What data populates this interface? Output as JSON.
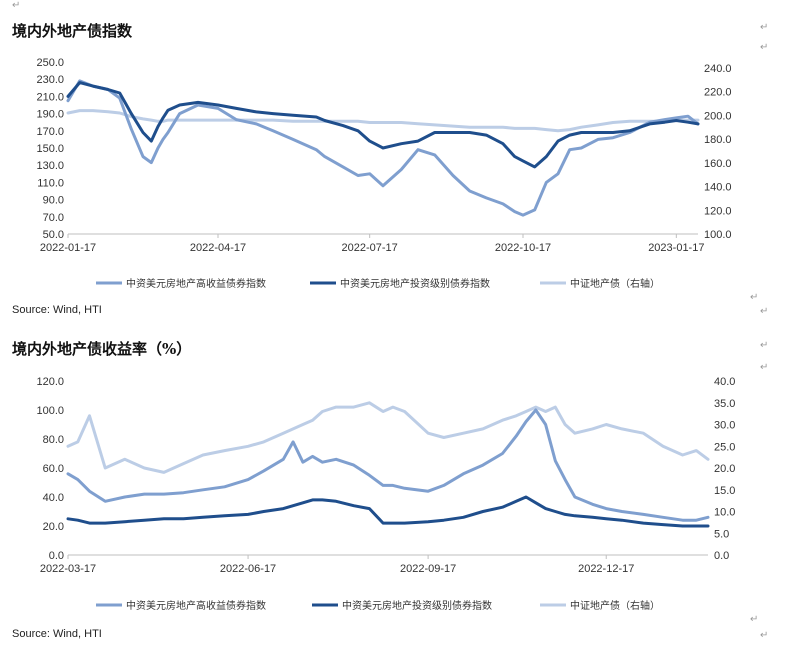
{
  "page": {
    "para_mark": "↵",
    "title1": "境内外地产债指数",
    "title2": "境内外地产债收益率（%）",
    "source1": "Source: Wind, HTI",
    "source2": "Source: Wind, HTI"
  },
  "colors": {
    "high_yield": "#7f9fcf",
    "investment_grade": "#1f4e8c",
    "onshore": "#bccde6"
  },
  "chart_data": [
    {
      "type": "line",
      "title": "境内外地产债指数",
      "x_dates": [
        "2022-01-17",
        "2022-01-24",
        "2022-02-01",
        "2022-02-10",
        "2022-02-17",
        "2022-02-24",
        "2022-03-03",
        "2022-03-08",
        "2022-03-12",
        "2022-03-15",
        "2022-03-18",
        "2022-03-25",
        "2022-04-05",
        "2022-04-17",
        "2022-04-28",
        "2022-05-10",
        "2022-05-20",
        "2022-06-01",
        "2022-06-15",
        "2022-06-20",
        "2022-07-01",
        "2022-07-10",
        "2022-07-17",
        "2022-07-25",
        "2022-08-05",
        "2022-08-15",
        "2022-08-25",
        "2022-09-05",
        "2022-09-15",
        "2022-09-25",
        "2022-10-05",
        "2022-10-12",
        "2022-10-17",
        "2022-10-24",
        "2022-10-31",
        "2022-11-07",
        "2022-11-14",
        "2022-11-21",
        "2022-12-01",
        "2022-12-10",
        "2022-12-20",
        "2023-01-01",
        "2023-01-10",
        "2023-01-17",
        "2023-01-24",
        "2023-01-30"
      ],
      "x_ticks": [
        "2022-01-17",
        "2022-04-17",
        "2022-07-17",
        "2022-10-17",
        "2023-01-17"
      ],
      "yleft_ticks": [
        "50.0",
        "70.0",
        "90.0",
        "110.0",
        "130.0",
        "150.0",
        "170.0",
        "190.0",
        "210.0",
        "230.0",
        "250.0"
      ],
      "yleft_range": [
        50,
        250
      ],
      "yright_ticks": [
        "100.0",
        "120.0",
        "140.0",
        "160.0",
        "180.0",
        "200.0",
        "220.0",
        "240.0"
      ],
      "yright_range": [
        100,
        245
      ],
      "series": [
        {
          "name": "中资美元房地产高收益债券指数",
          "axis": "left",
          "values": [
            205,
            228,
            222,
            218,
            208,
            172,
            140,
            133,
            150,
            160,
            168,
            190,
            200,
            196,
            183,
            178,
            170,
            160,
            148,
            140,
            128,
            118,
            120,
            106,
            125,
            148,
            142,
            118,
            100,
            92,
            85,
            76,
            72,
            78,
            110,
            120,
            148,
            150,
            160,
            162,
            168,
            180,
            183,
            185,
            187,
            178
          ]
        },
        {
          "name": "中资美元房地产投资级别债券指数",
          "axis": "left",
          "values": [
            210,
            226,
            222,
            218,
            214,
            190,
            168,
            158,
            175,
            185,
            194,
            200,
            203,
            200,
            196,
            192,
            190,
            188,
            186,
            182,
            176,
            170,
            158,
            150,
            155,
            158,
            168,
            168,
            168,
            165,
            155,
            140,
            135,
            128,
            140,
            158,
            165,
            168,
            168,
            168,
            170,
            178,
            180,
            182,
            180,
            178
          ]
        },
        {
          "name": "中证地产债（右轴）",
          "axis": "right",
          "values": [
            202,
            204,
            204,
            203,
            202,
            199,
            197,
            196,
            195,
            195,
            196,
            196,
            196,
            196,
            196,
            196,
            196,
            195,
            195,
            195,
            195,
            195,
            194,
            194,
            194,
            193,
            192,
            191,
            190,
            190,
            190,
            189,
            189,
            189,
            188,
            187,
            188,
            190,
            192,
            194,
            195,
            195,
            195,
            196,
            196,
            196
          ]
        }
      ],
      "legend": "bottom"
    },
    {
      "type": "line",
      "title": "境内外地产债收益率（%）",
      "x_dates": [
        "2022-03-17",
        "2022-03-22",
        "2022-03-28",
        "2022-04-05",
        "2022-04-15",
        "2022-04-25",
        "2022-05-05",
        "2022-05-15",
        "2022-05-25",
        "2022-06-05",
        "2022-06-17",
        "2022-06-25",
        "2022-07-05",
        "2022-07-10",
        "2022-07-15",
        "2022-07-20",
        "2022-07-25",
        "2022-08-01",
        "2022-08-10",
        "2022-08-18",
        "2022-08-25",
        "2022-08-30",
        "2022-09-05",
        "2022-09-17",
        "2022-09-25",
        "2022-10-05",
        "2022-10-15",
        "2022-10-25",
        "2022-11-01",
        "2022-11-06",
        "2022-11-11",
        "2022-11-16",
        "2022-11-21",
        "2022-11-26",
        "2022-12-01",
        "2022-12-10",
        "2022-12-17",
        "2022-12-25",
        "2023-01-05",
        "2023-01-15",
        "2023-01-25",
        "2023-02-01",
        "2023-02-07"
      ],
      "x_ticks": [
        "2022-03-17",
        "2022-06-17",
        "2022-09-17",
        "2022-12-17"
      ],
      "yleft_ticks": [
        "0.0",
        "20.0",
        "40.0",
        "60.0",
        "80.0",
        "100.0",
        "120.0"
      ],
      "yleft_range": [
        0,
        120
      ],
      "yright_ticks": [
        "0.0",
        "5.0",
        "10.0",
        "15.0",
        "20.0",
        "25.0",
        "30.0",
        "35.0",
        "40.0"
      ],
      "yright_range": [
        0,
        40
      ],
      "series": [
        {
          "name": "中资美元房地产高收益债券指数",
          "axis": "left",
          "values": [
            56,
            52,
            44,
            37,
            40,
            42,
            42,
            43,
            45,
            47,
            52,
            58,
            66,
            78,
            64,
            68,
            64,
            66,
            62,
            55,
            48,
            48,
            46,
            44,
            48,
            56,
            62,
            70,
            82,
            92,
            100,
            90,
            65,
            52,
            40,
            35,
            32,
            30,
            28,
            26,
            24,
            24,
            26
          ]
        },
        {
          "name": "中资美元房地产投资级别债券指数",
          "axis": "left",
          "values": [
            25,
            24,
            22,
            22,
            23,
            24,
            25,
            25,
            26,
            27,
            28,
            30,
            32,
            34,
            36,
            38,
            38,
            37,
            34,
            32,
            22,
            22,
            22,
            23,
            24,
            26,
            30,
            33,
            37,
            40,
            36,
            32,
            30,
            28,
            27,
            26,
            25,
            24,
            22,
            21,
            20,
            20,
            20
          ]
        },
        {
          "name": "中证地产债（右轴）",
          "axis": "right",
          "values": [
            25,
            26,
            32,
            20,
            22,
            20,
            19,
            21,
            23,
            24,
            25,
            26,
            28,
            29,
            30,
            31,
            33,
            34,
            34,
            35,
            33,
            34,
            33,
            28,
            27,
            28,
            29,
            31,
            32,
            33,
            34,
            33,
            34,
            30,
            28,
            29,
            30,
            29,
            28,
            25,
            23,
            24,
            22
          ]
        }
      ],
      "legend": "bottom"
    }
  ]
}
